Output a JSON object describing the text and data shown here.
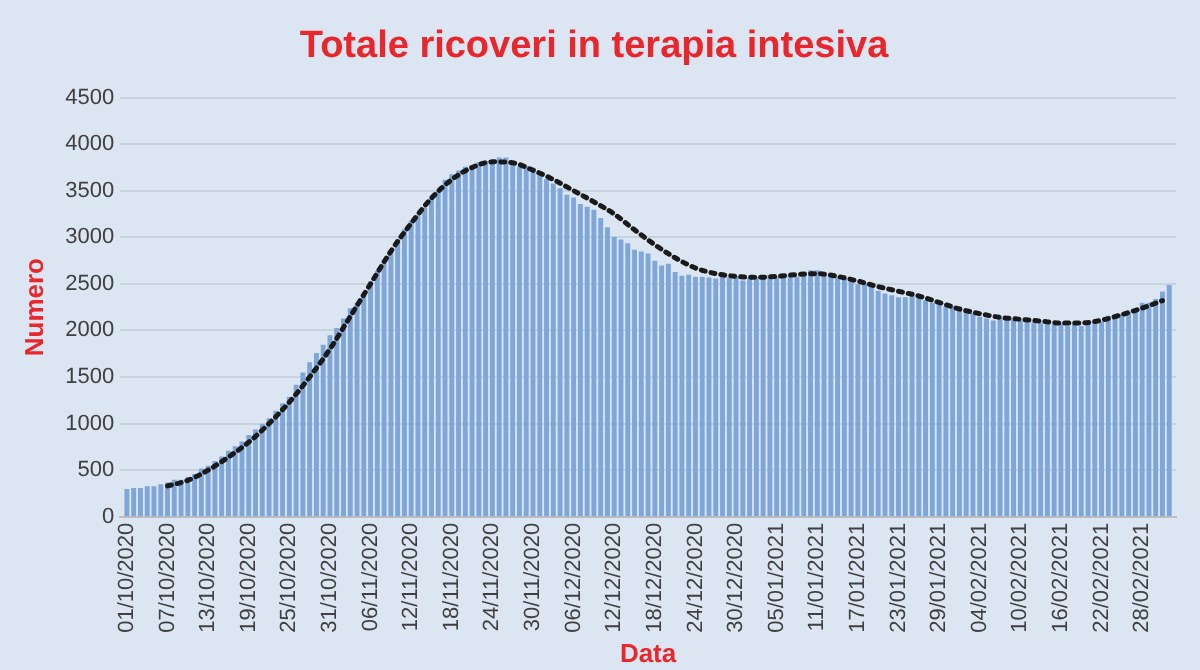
{
  "chart_data": {
    "type": "bar",
    "title": "Totale ricoveri in terapia intesiva",
    "xlabel": "Data",
    "ylabel": "Numero",
    "xlim": [
      "2020-09-30",
      "2021-03-05"
    ],
    "xticks": [
      {
        "value": "2020-10-01",
        "label": "01/10/2020"
      },
      {
        "value": "2020-10-07",
        "label": "07/10/2020"
      },
      {
        "value": "2020-10-13",
        "label": "13/10/2020"
      },
      {
        "value": "2020-10-19",
        "label": "19/10/2020"
      },
      {
        "value": "2020-10-25",
        "label": "25/10/2020"
      },
      {
        "value": "2020-10-31",
        "label": "31/10/2020"
      },
      {
        "value": "2020-11-06",
        "label": "06/11/2020"
      },
      {
        "value": "2020-11-12",
        "label": "12/11/2020"
      },
      {
        "value": "2020-11-18",
        "label": "18/11/2020"
      },
      {
        "value": "2020-11-24",
        "label": "24/11/2020"
      },
      {
        "value": "2020-11-30",
        "label": "30/11/2020"
      },
      {
        "value": "2020-12-06",
        "label": "06/12/2020"
      },
      {
        "value": "2020-12-12",
        "label": "12/12/2020"
      },
      {
        "value": "2020-12-18",
        "label": "18/12/2020"
      },
      {
        "value": "2020-12-24",
        "label": "24/12/2020"
      },
      {
        "value": "2020-12-30",
        "label": "30/12/2020"
      },
      {
        "value": "2021-01-05",
        "label": "05/01/2021"
      },
      {
        "value": "2021-01-11",
        "label": "11/01/2021"
      },
      {
        "value": "2021-01-17",
        "label": "17/01/2021"
      },
      {
        "value": "2021-01-23",
        "label": "23/01/2021"
      },
      {
        "value": "2021-01-29",
        "label": "29/01/2021"
      },
      {
        "value": "2021-02-04",
        "label": "04/02/2021"
      },
      {
        "value": "2021-02-10",
        "label": "10/02/2021"
      },
      {
        "value": "2021-02-16",
        "label": "16/02/2021"
      },
      {
        "value": "2021-02-22",
        "label": "22/02/2021"
      },
      {
        "value": "2021-02-28",
        "label": "28/02/2021"
      }
    ],
    "ylim": [
      0,
      4500
    ],
    "yticks": [
      0,
      500,
      1000,
      1500,
      2000,
      2500,
      3000,
      3500,
      4000,
      4500
    ],
    "grid": "y",
    "legend": false,
    "series": [
      {
        "color": "#7ea6d8",
        "x": [
          "2020-10-01",
          "2020-10-02",
          "2020-10-03",
          "2020-10-04",
          "2020-10-05",
          "2020-10-06",
          "2020-10-07",
          "2020-10-08",
          "2020-10-09",
          "2020-10-10",
          "2020-10-11",
          "2020-10-12",
          "2020-10-13",
          "2020-10-14",
          "2020-10-15",
          "2020-10-16",
          "2020-10-17",
          "2020-10-18",
          "2020-10-19",
          "2020-10-20",
          "2020-10-21",
          "2020-10-22",
          "2020-10-23",
          "2020-10-24",
          "2020-10-25",
          "2020-10-26",
          "2020-10-27",
          "2020-10-28",
          "2020-10-29",
          "2020-10-30",
          "2020-10-31",
          "2020-11-01",
          "2020-11-02",
          "2020-11-03",
          "2020-11-04",
          "2020-11-05",
          "2020-11-06",
          "2020-11-07",
          "2020-11-08",
          "2020-11-09",
          "2020-11-10",
          "2020-11-11",
          "2020-11-12",
          "2020-11-13",
          "2020-11-14",
          "2020-11-15",
          "2020-11-16",
          "2020-11-17",
          "2020-11-18",
          "2020-11-19",
          "2020-11-20",
          "2020-11-21",
          "2020-11-22",
          "2020-11-23",
          "2020-11-24",
          "2020-11-25",
          "2020-11-26",
          "2020-11-27",
          "2020-11-28",
          "2020-11-29",
          "2020-11-30",
          "2020-12-01",
          "2020-12-02",
          "2020-12-03",
          "2020-12-04",
          "2020-12-05",
          "2020-12-06",
          "2020-12-07",
          "2020-12-08",
          "2020-12-09",
          "2020-12-10",
          "2020-12-11",
          "2020-12-12",
          "2020-12-13",
          "2020-12-14",
          "2020-12-15",
          "2020-12-16",
          "2020-12-17",
          "2020-12-18",
          "2020-12-19",
          "2020-12-20",
          "2020-12-21",
          "2020-12-22",
          "2020-12-23",
          "2020-12-24",
          "2020-12-25",
          "2020-12-26",
          "2020-12-27",
          "2020-12-28",
          "2020-12-29",
          "2020-12-30",
          "2020-12-31",
          "2021-01-01",
          "2021-01-02",
          "2021-01-03",
          "2021-01-04",
          "2021-01-05",
          "2021-01-06",
          "2021-01-07",
          "2021-01-08",
          "2021-01-09",
          "2021-01-10",
          "2021-01-11",
          "2021-01-12",
          "2021-01-13",
          "2021-01-14",
          "2021-01-15",
          "2021-01-16",
          "2021-01-17",
          "2021-01-18",
          "2021-01-19",
          "2021-01-20",
          "2021-01-21",
          "2021-01-22",
          "2021-01-23",
          "2021-01-24",
          "2021-01-25",
          "2021-01-26",
          "2021-01-27",
          "2021-01-28",
          "2021-01-29",
          "2021-01-30",
          "2021-01-31",
          "2021-02-01",
          "2021-02-02",
          "2021-02-03",
          "2021-02-04",
          "2021-02-05",
          "2021-02-06",
          "2021-02-07",
          "2021-02-08",
          "2021-02-09",
          "2021-02-10",
          "2021-02-11",
          "2021-02-12",
          "2021-02-13",
          "2021-02-14",
          "2021-02-15",
          "2021-02-16",
          "2021-02-17",
          "2021-02-18",
          "2021-02-19",
          "2021-02-20",
          "2021-02-21",
          "2021-02-22",
          "2021-02-23",
          "2021-02-24",
          "2021-02-25",
          "2021-02-26",
          "2021-02-27",
          "2021-02-28",
          "2021-03-01",
          "2021-03-02",
          "2021-03-03",
          "2021-03-04"
        ],
        "values": [
          290,
          300,
          300,
          320,
          320,
          340,
          360,
          390,
          390,
          420,
          450,
          510,
          540,
          590,
          640,
          700,
          750,
          800,
          870,
          930,
          990,
          1050,
          1130,
          1210,
          1280,
          1410,
          1540,
          1650,
          1750,
          1840,
          1940,
          2020,
          2120,
          2230,
          2290,
          2390,
          2520,
          2630,
          2750,
          2850,
          2970,
          3080,
          3170,
          3230,
          3310,
          3420,
          3490,
          3610,
          3670,
          3710,
          3750,
          3760,
          3800,
          3810,
          3820,
          3850,
          3850,
          3780,
          3750,
          3760,
          3740,
          3660,
          3620,
          3570,
          3520,
          3450,
          3420,
          3350,
          3320,
          3290,
          3200,
          3100,
          3000,
          2970,
          2930,
          2860,
          2840,
          2820,
          2740,
          2690,
          2710,
          2620,
          2580,
          2590,
          2570,
          2570,
          2560,
          2550,
          2570,
          2560,
          2570,
          2530,
          2560,
          2570,
          2580,
          2590,
          2570,
          2590,
          2590,
          2570,
          2590,
          2640,
          2640,
          2590,
          2580,
          2570,
          2560,
          2520,
          2490,
          2500,
          2460,
          2420,
          2390,
          2370,
          2350,
          2350,
          2370,
          2350,
          2320,
          2290,
          2270,
          2250,
          2250,
          2250,
          2220,
          2180,
          2140,
          2120,
          2100,
          2130,
          2130,
          2110,
          2100,
          2090,
          2080,
          2070,
          2070,
          2060,
          2070,
          2040,
          2060,
          2040,
          2060,
          2090,
          2090,
          2150,
          2160,
          2170,
          2190,
          2220,
          2290,
          2290,
          2330,
          2410,
          2480
        ]
      },
      {
        "type": "line",
        "color": "#1a1a1a",
        "line_style": "dotted",
        "marker": "none",
        "x": [
          "2020-10-07",
          "2020-10-10",
          "2020-10-13",
          "2020-10-16",
          "2020-10-19",
          "2020-10-22",
          "2020-10-25",
          "2020-10-28",
          "2020-10-31",
          "2020-11-03",
          "2020-11-06",
          "2020-11-09",
          "2020-11-12",
          "2020-11-15",
          "2020-11-18",
          "2020-11-21",
          "2020-11-24",
          "2020-11-27",
          "2020-11-30",
          "2020-12-03",
          "2020-12-06",
          "2020-12-09",
          "2020-12-12",
          "2020-12-15",
          "2020-12-18",
          "2020-12-21",
          "2020-12-24",
          "2020-12-27",
          "2020-12-30",
          "2021-01-02",
          "2021-01-05",
          "2021-01-08",
          "2021-01-11",
          "2021-01-14",
          "2021-01-17",
          "2021-01-20",
          "2021-01-23",
          "2021-01-26",
          "2021-01-29",
          "2021-02-01",
          "2021-02-04",
          "2021-02-07",
          "2021-02-10",
          "2021-02-13",
          "2021-02-16",
          "2021-02-19",
          "2021-02-22",
          "2021-02-25",
          "2021-02-28",
          "2021-03-03"
        ],
        "values": [
          330,
          390,
          500,
          640,
          800,
          1000,
          1230,
          1500,
          1800,
          2150,
          2500,
          2850,
          3150,
          3420,
          3620,
          3750,
          3810,
          3800,
          3720,
          3620,
          3500,
          3380,
          3250,
          3080,
          2920,
          2780,
          2670,
          2610,
          2580,
          2570,
          2580,
          2600,
          2610,
          2580,
          2530,
          2470,
          2420,
          2370,
          2300,
          2230,
          2180,
          2140,
          2120,
          2100,
          2080,
          2080,
          2110,
          2170,
          2240,
          2320
        ]
      }
    ]
  }
}
